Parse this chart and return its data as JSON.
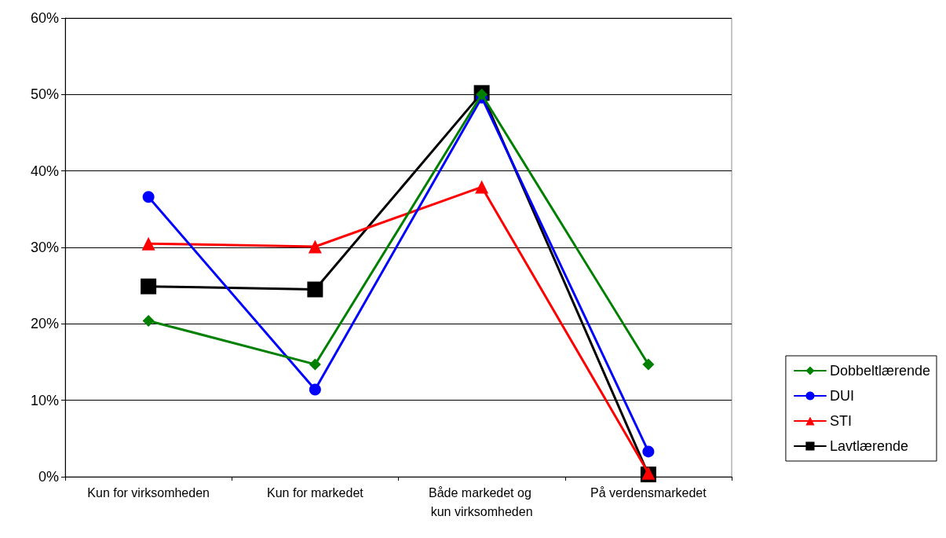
{
  "chart_data": {
    "type": "line",
    "categories": [
      "Kun for virksomheden",
      "Kun for markedet",
      "Både markedet og kun virksomheden",
      "På verdensmarkedet"
    ],
    "series": [
      {
        "name": "Dobbeltlærende",
        "color": "#008000",
        "marker": "diamond",
        "values": [
          20.4,
          14.7,
          50,
          14.7
        ]
      },
      {
        "name": "DUI",
        "color": "#0000ff",
        "marker": "circle",
        "values": [
          36.6,
          11.4,
          49.6,
          3.3
        ]
      },
      {
        "name": "STI",
        "color": "#ff0000",
        "marker": "triangle",
        "values": [
          30.5,
          30.1,
          37.9,
          0.5
        ]
      },
      {
        "name": "Lavtlærende",
        "color": "#000000",
        "marker": "square",
        "values": [
          24.9,
          24.5,
          50.2,
          0.3
        ]
      }
    ],
    "ylim": [
      0,
      60
    ],
    "yticks": [
      {
        "value": 0,
        "label": "0%"
      },
      {
        "value": 10,
        "label": "10%"
      },
      {
        "value": 20,
        "label": "20%"
      },
      {
        "value": 30,
        "label": "30%"
      },
      {
        "value": 40,
        "label": "40%"
      },
      {
        "value": 50,
        "label": "50%"
      },
      {
        "value": 60,
        "label": "60%"
      }
    ],
    "grid": "y",
    "legend": "right",
    "line_style": "solid"
  }
}
